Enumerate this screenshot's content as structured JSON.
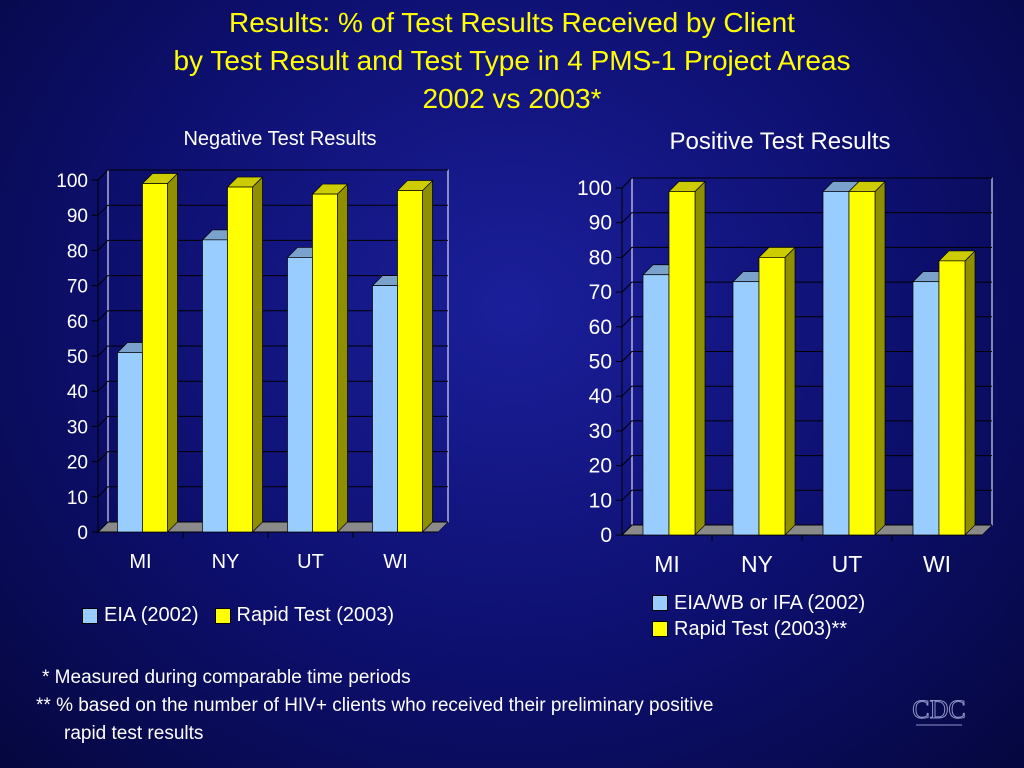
{
  "title_lines": [
    "Results:  % of Test Results Received by Client",
    "by Test Result and Test Type in 4 PMS-1 Project Areas",
    "2002 vs 2003*"
  ],
  "colors": {
    "background": "#0d0f6e",
    "title": "#ffff00",
    "series1": "#99ccff",
    "series2": "#ffff00"
  },
  "chart_data": [
    {
      "type": "bar",
      "title": "Negative Test Results",
      "categories": [
        "MI",
        "NY",
        "UT",
        "WI"
      ],
      "series": [
        {
          "name": "EIA (2002)",
          "values": [
            51,
            83,
            78,
            70
          ]
        },
        {
          "name": "Rapid Test (2003)",
          "values": [
            99,
            98,
            96,
            97
          ]
        }
      ],
      "ylim": [
        0,
        100
      ],
      "yticks": [
        0,
        10,
        20,
        30,
        40,
        50,
        60,
        70,
        80,
        90,
        100
      ],
      "grid": true,
      "legend_position": "bottom"
    },
    {
      "type": "bar",
      "title": "Positive Test Results",
      "categories": [
        "MI",
        "NY",
        "UT",
        "WI"
      ],
      "series": [
        {
          "name": "EIA/WB or IFA (2002)",
          "values": [
            75,
            73,
            99,
            73
          ]
        },
        {
          "name": "Rapid Test (2003)**",
          "values": [
            99,
            80,
            99,
            79
          ]
        }
      ],
      "ylim": [
        0,
        100
      ],
      "yticks": [
        0,
        10,
        20,
        30,
        40,
        50,
        60,
        70,
        80,
        90,
        100
      ],
      "grid": true,
      "legend_position": "bottom"
    }
  ],
  "footnotes": [
    "* Measured during comparable time periods",
    "** % based on the number of HIV+ clients who received their preliminary positive",
    "rapid test results"
  ],
  "logo_text": "CDC"
}
